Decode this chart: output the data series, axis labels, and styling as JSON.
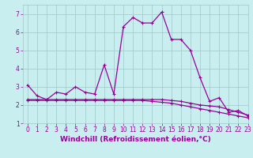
{
  "title": "",
  "xlabel": "Windchill (Refroidissement éolien,°C)",
  "ylabel": "",
  "x": [
    0,
    1,
    2,
    3,
    4,
    5,
    6,
    7,
    8,
    9,
    10,
    11,
    12,
    13,
    14,
    15,
    16,
    17,
    18,
    19,
    20,
    21,
    22,
    23
  ],
  "line1": [
    3.1,
    2.5,
    2.3,
    2.7,
    2.6,
    3.0,
    2.7,
    2.6,
    4.2,
    2.6,
    6.3,
    6.8,
    6.5,
    6.5,
    7.1,
    5.6,
    5.6,
    5.0,
    3.5,
    2.2,
    2.4,
    1.6,
    1.7,
    1.4
  ],
  "line2": [
    2.3,
    2.3,
    2.3,
    2.3,
    2.3,
    2.3,
    2.3,
    2.3,
    2.3,
    2.3,
    2.3,
    2.3,
    2.3,
    2.3,
    2.3,
    2.25,
    2.2,
    2.1,
    2.0,
    1.95,
    1.9,
    1.75,
    1.6,
    1.45
  ],
  "line3": [
    2.25,
    2.25,
    2.25,
    2.25,
    2.25,
    2.25,
    2.25,
    2.25,
    2.25,
    2.25,
    2.25,
    2.25,
    2.25,
    2.2,
    2.15,
    2.1,
    2.0,
    1.9,
    1.8,
    1.7,
    1.6,
    1.5,
    1.4,
    1.3
  ],
  "line_color": "#990099",
  "bg_color": "#c8eef0",
  "grid_color": "#a0c8c8",
  "xlim": [
    -0.5,
    23
  ],
  "ylim": [
    1,
    7.5
  ],
  "yticks": [
    1,
    2,
    3,
    4,
    5,
    6,
    7
  ],
  "xticks": [
    0,
    1,
    2,
    3,
    4,
    5,
    6,
    7,
    8,
    9,
    10,
    11,
    12,
    13,
    14,
    15,
    16,
    17,
    18,
    19,
    20,
    21,
    22,
    23
  ],
  "tick_fontsize": 5.5,
  "xlabel_fontsize": 6.5,
  "lw": 0.9,
  "marker_size": 3
}
